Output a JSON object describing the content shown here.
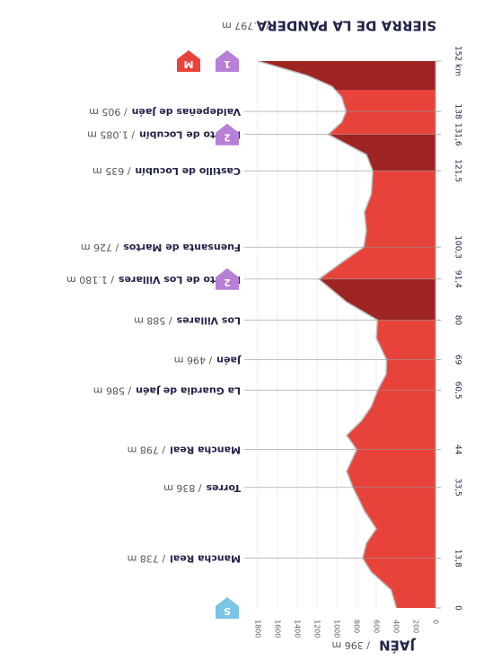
{
  "chart_data": {
    "type": "elevation-profile",
    "title": "SIERRA DE LA PANDERA",
    "title_alt": "/ 1.797 m",
    "start": "JAÉN",
    "start_alt": "/ 396 m",
    "x": [
      0,
      5,
      10,
      13.8,
      18,
      22,
      27,
      33.5,
      38,
      44,
      48,
      52,
      56,
      60.5,
      65,
      69,
      75,
      80,
      85,
      91.4,
      96,
      100.3,
      105,
      110,
      115,
      121.5,
      126,
      131.6,
      135,
      138,
      142,
      145,
      148,
      152
    ],
    "series": [
      {
        "name": "Altitud",
        "color": "#e8433b",
        "values": [
          396,
          450,
          650,
          738,
          700,
          600,
          720,
          836,
          900,
          798,
          900,
          750,
          650,
          586,
          500,
          496,
          600,
          588,
          900,
          1180,
          950,
          726,
          700,
          720,
          650,
          635,
          700,
          1085,
          950,
          905,
          950,
          1050,
          1300,
          1797
        ]
      }
    ],
    "climbs": [
      [
        80,
        91.4
      ],
      [
        121.5,
        131.6
      ],
      [
        144,
        152
      ]
    ],
    "climb_color": "#9e2424",
    "xlim": [
      0,
      152
    ],
    "ylim": [
      0,
      1800
    ],
    "yticks": [
      0,
      200,
      400,
      600,
      800,
      1000,
      1200,
      1400,
      1600,
      1800
    ],
    "xticks": [
      0,
      {
        "value": 13.8,
        "label": "13,8"
      },
      {
        "value": 33.5,
        "label": "33,5"
      },
      44,
      {
        "value": 60.5,
        "label": "60,5"
      },
      69,
      80,
      {
        "value": 91.4,
        "label": "91,4"
      },
      {
        "value": 100.3,
        "label": "100,3"
      },
      {
        "value": 121.5,
        "label": "121,5"
      },
      {
        "value": 131.6,
        "label": "131,6"
      },
      138,
      {
        "value": 152,
        "label": "152 km"
      }
    ],
    "waypoints": [
      {
        "km": 13.8,
        "name": "Mancha Real",
        "alt": "/ 738 m"
      },
      {
        "km": 33.5,
        "name": "Torres",
        "alt": "/ 836 m"
      },
      {
        "km": 44,
        "name": "Mancha Real",
        "alt": "/ 798 m"
      },
      {
        "km": 60.5,
        "name": "La Guardia de Jaén",
        "alt": "/ 586 m"
      },
      {
        "km": 69,
        "name": "Jaén",
        "alt": "/ 496 m"
      },
      {
        "km": 80,
        "name": "Los Villares",
        "alt": "/ 588 m"
      },
      {
        "km": 91.4,
        "name": "Puerto de Los Villares",
        "alt": "/ 1.180 m"
      },
      {
        "km": 100.3,
        "name": "Fuensanta de Martos",
        "alt": "/ 726 m"
      },
      {
        "km": 121.5,
        "name": "Castillo de Locubín",
        "alt": "/ 635 m"
      },
      {
        "km": 131.6,
        "name": "Puerto de Locubín",
        "alt": "/ 1.085 m"
      },
      {
        "km": 138,
        "name": "Valdepeñas de Jaén",
        "alt": "/ 905 m"
      }
    ],
    "badges": [
      {
        "km": 0,
        "label": "S",
        "color": "#7cc4e6"
      },
      {
        "km": 91.4,
        "label": "2",
        "color": "#b77fd6"
      },
      {
        "km": 131.6,
        "label": "2",
        "color": "#b77fd6"
      },
      {
        "km": 152,
        "label": "1",
        "color": "#b77fd6"
      },
      {
        "km": 152,
        "label": "M",
        "color": "#e8433b"
      }
    ]
  }
}
